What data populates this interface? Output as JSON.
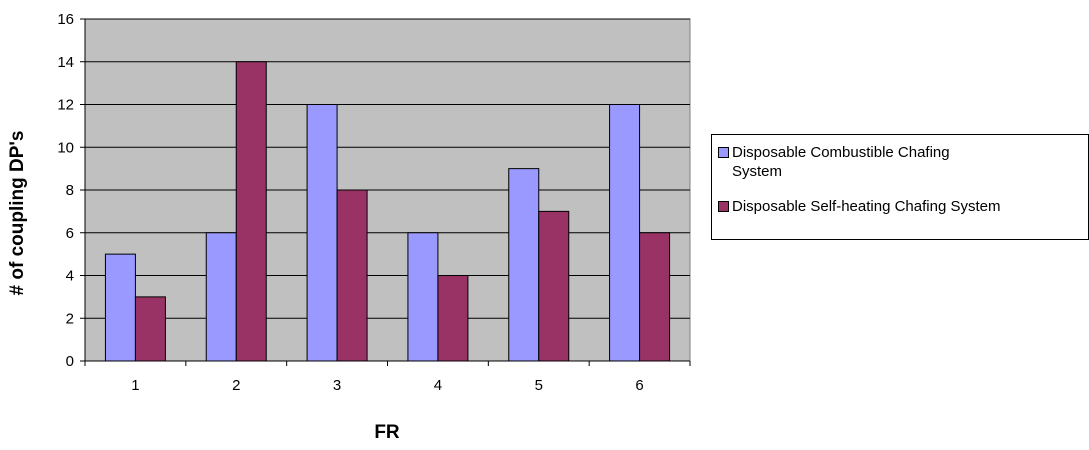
{
  "chart_data": {
    "type": "bar",
    "title": "",
    "xlabel": "FR",
    "ylabel": "# of coupling DP's",
    "categories": [
      "1",
      "2",
      "3",
      "4",
      "5",
      "6"
    ],
    "series": [
      {
        "name": "Disposable Combustible Chafing System",
        "values": [
          5,
          6,
          12,
          6,
          9,
          12
        ],
        "color": "#9999ff"
      },
      {
        "name": "Disposable Self-heating Chafing System",
        "values": [
          3,
          14,
          8,
          4,
          7,
          6
        ],
        "color": "#993366"
      }
    ],
    "ylim": [
      0,
      16
    ],
    "yticks": [
      "0",
      "2",
      "4",
      "6",
      "8",
      "10",
      "12",
      "14",
      "16"
    ],
    "grid": true,
    "legend_position": "right",
    "plot_background": "#c0c0c0"
  }
}
